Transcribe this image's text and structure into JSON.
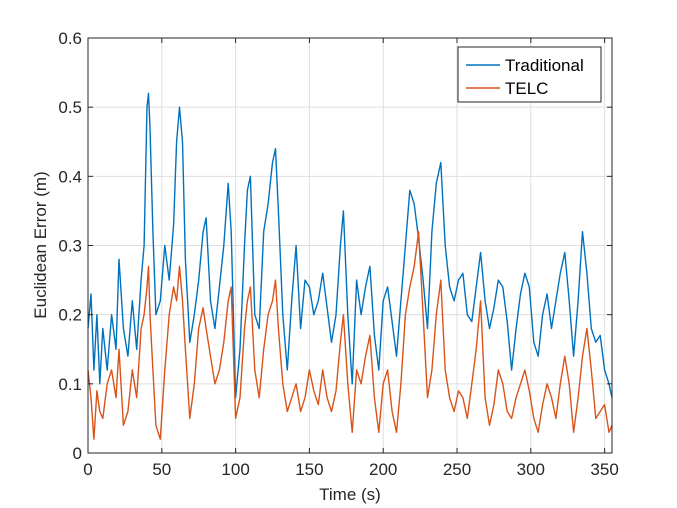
{
  "chart_data": {
    "type": "line",
    "xlabel": "Time (s)",
    "ylabel": "Euclidean Error (m)",
    "xlim": [
      0,
      355
    ],
    "ylim": [
      0,
      0.6
    ],
    "x_ticks": [
      0,
      50,
      100,
      150,
      200,
      250,
      300,
      350
    ],
    "y_ticks": [
      0,
      0.1,
      0.2,
      0.3,
      0.4,
      0.5,
      0.6
    ],
    "x_tick_labels": [
      "0",
      "50",
      "100",
      "150",
      "200",
      "250",
      "300",
      "350"
    ],
    "y_tick_labels": [
      "0",
      "0.1",
      "0.2",
      "0.3",
      "0.4",
      "0.5",
      "0.6"
    ],
    "grid": true,
    "legend_position": "top-right",
    "series": [
      {
        "name": "Traditional",
        "color": "#0072BD",
        "x": [
          0,
          2,
          4,
          6,
          8,
          10,
          13,
          16,
          19,
          21,
          24,
          27,
          30,
          33,
          36,
          38,
          40,
          41,
          42,
          44,
          46,
          49,
          52,
          55,
          58,
          60,
          62,
          64,
          66,
          69,
          72,
          75,
          78,
          80,
          83,
          86,
          89,
          92,
          95,
          97,
          100,
          103,
          106,
          108,
          110,
          113,
          116,
          119,
          122,
          125,
          127,
          129,
          132,
          135,
          138,
          141,
          144,
          147,
          150,
          153,
          156,
          159,
          162,
          165,
          168,
          171,
          173,
          176,
          179,
          182,
          185,
          188,
          191,
          194,
          197,
          200,
          203,
          206,
          209,
          212,
          215,
          218,
          221,
          224,
          227,
          230,
          233,
          236,
          239,
          242,
          245,
          248,
          251,
          254,
          257,
          260,
          263,
          266,
          269,
          272,
          275,
          278,
          281,
          284,
          287,
          290,
          293,
          296,
          299,
          302,
          305,
          308,
          311,
          314,
          317,
          320,
          323,
          326,
          329,
          332,
          335,
          338,
          341,
          344,
          347,
          350,
          353,
          355
        ],
        "values": [
          0.18,
          0.23,
          0.12,
          0.2,
          0.1,
          0.18,
          0.12,
          0.2,
          0.15,
          0.28,
          0.18,
          0.14,
          0.22,
          0.15,
          0.25,
          0.3,
          0.5,
          0.52,
          0.47,
          0.32,
          0.2,
          0.22,
          0.3,
          0.25,
          0.33,
          0.45,
          0.5,
          0.45,
          0.28,
          0.16,
          0.2,
          0.25,
          0.32,
          0.34,
          0.22,
          0.18,
          0.24,
          0.3,
          0.39,
          0.32,
          0.08,
          0.15,
          0.3,
          0.38,
          0.4,
          0.2,
          0.18,
          0.32,
          0.36,
          0.42,
          0.44,
          0.35,
          0.2,
          0.12,
          0.22,
          0.3,
          0.18,
          0.25,
          0.24,
          0.2,
          0.22,
          0.26,
          0.21,
          0.16,
          0.2,
          0.3,
          0.35,
          0.2,
          0.1,
          0.25,
          0.2,
          0.24,
          0.27,
          0.17,
          0.12,
          0.22,
          0.24,
          0.19,
          0.14,
          0.22,
          0.3,
          0.38,
          0.36,
          0.31,
          0.25,
          0.18,
          0.32,
          0.39,
          0.42,
          0.3,
          0.24,
          0.22,
          0.25,
          0.26,
          0.2,
          0.19,
          0.24,
          0.29,
          0.22,
          0.18,
          0.21,
          0.25,
          0.24,
          0.19,
          0.12,
          0.18,
          0.23,
          0.26,
          0.24,
          0.16,
          0.14,
          0.2,
          0.23,
          0.18,
          0.22,
          0.26,
          0.29,
          0.22,
          0.14,
          0.22,
          0.32,
          0.26,
          0.18,
          0.16,
          0.17,
          0.12,
          0.1,
          0.08
        ]
      },
      {
        "name": "TELC",
        "color": "#D95319",
        "x": [
          0,
          2,
          4,
          6,
          8,
          10,
          13,
          16,
          19,
          21,
          24,
          27,
          30,
          33,
          36,
          38,
          40,
          41,
          42,
          44,
          46,
          49,
          52,
          55,
          58,
          60,
          62,
          64,
          66,
          69,
          72,
          75,
          78,
          80,
          83,
          86,
          89,
          92,
          95,
          97,
          100,
          103,
          106,
          108,
          110,
          113,
          116,
          119,
          122,
          125,
          127,
          129,
          132,
          135,
          138,
          141,
          144,
          147,
          150,
          153,
          156,
          159,
          162,
          165,
          168,
          171,
          173,
          176,
          179,
          182,
          185,
          188,
          191,
          194,
          197,
          200,
          203,
          206,
          209,
          212,
          215,
          218,
          221,
          224,
          227,
          230,
          233,
          236,
          239,
          242,
          245,
          248,
          251,
          254,
          257,
          260,
          263,
          266,
          269,
          272,
          275,
          278,
          281,
          284,
          287,
          290,
          293,
          296,
          299,
          302,
          305,
          308,
          311,
          314,
          317,
          320,
          323,
          326,
          329,
          332,
          335,
          338,
          341,
          344,
          347,
          350,
          353,
          355
        ],
        "values": [
          0.12,
          0.08,
          0.02,
          0.09,
          0.06,
          0.05,
          0.1,
          0.12,
          0.08,
          0.15,
          0.04,
          0.06,
          0.12,
          0.08,
          0.18,
          0.2,
          0.24,
          0.27,
          0.2,
          0.12,
          0.04,
          0.02,
          0.12,
          0.2,
          0.24,
          0.22,
          0.27,
          0.22,
          0.15,
          0.05,
          0.1,
          0.18,
          0.21,
          0.18,
          0.14,
          0.1,
          0.12,
          0.16,
          0.22,
          0.24,
          0.05,
          0.08,
          0.18,
          0.22,
          0.24,
          0.12,
          0.08,
          0.15,
          0.2,
          0.22,
          0.25,
          0.18,
          0.1,
          0.06,
          0.08,
          0.1,
          0.06,
          0.08,
          0.12,
          0.09,
          0.07,
          0.12,
          0.08,
          0.06,
          0.09,
          0.16,
          0.2,
          0.1,
          0.03,
          0.12,
          0.1,
          0.14,
          0.17,
          0.08,
          0.03,
          0.1,
          0.12,
          0.06,
          0.03,
          0.1,
          0.2,
          0.24,
          0.27,
          0.32,
          0.2,
          0.08,
          0.12,
          0.2,
          0.25,
          0.12,
          0.08,
          0.06,
          0.09,
          0.08,
          0.05,
          0.1,
          0.15,
          0.22,
          0.08,
          0.04,
          0.07,
          0.12,
          0.1,
          0.06,
          0.05,
          0.08,
          0.1,
          0.12,
          0.09,
          0.05,
          0.03,
          0.07,
          0.1,
          0.08,
          0.05,
          0.1,
          0.14,
          0.1,
          0.03,
          0.08,
          0.14,
          0.18,
          0.12,
          0.05,
          0.06,
          0.07,
          0.03,
          0.04
        ]
      }
    ]
  }
}
